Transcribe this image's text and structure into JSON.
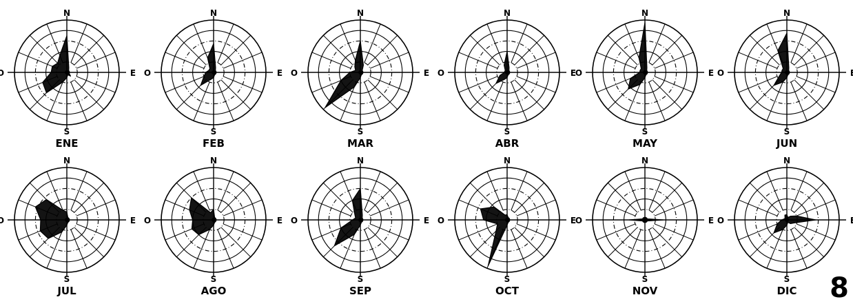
{
  "figure_number": "8",
  "compass": {
    "north": "N",
    "south": "S",
    "east": "E",
    "west": "O"
  },
  "colors": {
    "ink": "#000000",
    "paper": "#ffffff"
  },
  "chart_data": {
    "type": "radar",
    "description_axes": "wind rose, 16 compass directions starting at N, clockwise",
    "directions": [
      "N",
      "NNE",
      "NE",
      "ENE",
      "E",
      "ESE",
      "SE",
      "SSE",
      "S",
      "SSW",
      "SW",
      "WSW",
      "W",
      "WNW",
      "NW",
      "NNW"
    ],
    "rings": 5,
    "grid": true,
    "panels": [
      {
        "month": "ENE",
        "values": [
          0.7,
          0.1,
          0.05,
          0.05,
          0.05,
          0.05,
          0.1,
          0.05,
          0.1,
          0.2,
          0.55,
          0.5,
          0.3,
          0.3,
          0.25,
          0.35
        ]
      },
      {
        "month": "FEB",
        "values": [
          0.55,
          0.1,
          0.05,
          0.05,
          0.05,
          0.05,
          0.05,
          0.05,
          0.1,
          0.15,
          0.35,
          0.2,
          0.15,
          0.1,
          0.1,
          0.3
        ]
      },
      {
        "month": "MAR",
        "values": [
          0.6,
          0.15,
          0.05,
          0.05,
          0.05,
          0.05,
          0.05,
          0.05,
          0.1,
          0.3,
          0.95,
          0.4,
          0.2,
          0.1,
          0.15,
          0.25
        ]
      },
      {
        "month": "ABR",
        "values": [
          0.4,
          0.1,
          0.05,
          0.05,
          0.05,
          0.05,
          0.05,
          0.05,
          0.1,
          0.15,
          0.3,
          0.15,
          0.05,
          0.05,
          0.05,
          0.15
        ]
      },
      {
        "month": "MAY",
        "values": [
          0.95,
          0.1,
          0.05,
          0.05,
          0.05,
          0.05,
          0.05,
          0.05,
          0.1,
          0.25,
          0.45,
          0.3,
          0.1,
          0.1,
          0.1,
          0.3
        ]
      },
      {
        "month": "JUN",
        "values": [
          0.75,
          0.1,
          0.05,
          0.05,
          0.05,
          0.05,
          0.05,
          0.05,
          0.1,
          0.2,
          0.35,
          0.15,
          0.1,
          0.1,
          0.1,
          0.45
        ]
      },
      {
        "month": "JUL",
        "values": [
          0.15,
          0.05,
          0.05,
          0.05,
          0.05,
          0.05,
          0.05,
          0.05,
          0.1,
          0.25,
          0.5,
          0.55,
          0.5,
          0.65,
          0.55,
          0.2
        ]
      },
      {
        "month": "AGO",
        "values": [
          0.2,
          0.05,
          0.05,
          0.05,
          0.05,
          0.05,
          0.05,
          0.05,
          0.1,
          0.2,
          0.4,
          0.45,
          0.4,
          0.5,
          0.6,
          0.15
        ]
      },
      {
        "month": "SEP",
        "values": [
          0.6,
          0.1,
          0.05,
          0.05,
          0.05,
          0.05,
          0.05,
          0.05,
          0.1,
          0.3,
          0.7,
          0.4,
          0.15,
          0.1,
          0.15,
          0.4
        ]
      },
      {
        "month": "OCT",
        "values": [
          0.1,
          0.05,
          0.05,
          0.05,
          0.05,
          0.05,
          0.05,
          0.05,
          0.1,
          0.95,
          0.3,
          0.2,
          0.45,
          0.55,
          0.35,
          0.1
        ]
      },
      {
        "month": "NOV",
        "values": [
          0.05,
          0.05,
          0.05,
          0.05,
          0.35,
          0.05,
          0.05,
          0.05,
          0.05,
          0.05,
          0.05,
          0.05,
          0.3,
          0.05,
          0.05,
          0.05
        ]
      },
      {
        "month": "DIC",
        "values": [
          0.1,
          0.05,
          0.1,
          0.2,
          0.55,
          0.15,
          0.1,
          0.05,
          0.1,
          0.2,
          0.35,
          0.2,
          0.1,
          0.05,
          0.05,
          0.1
        ]
      }
    ]
  }
}
